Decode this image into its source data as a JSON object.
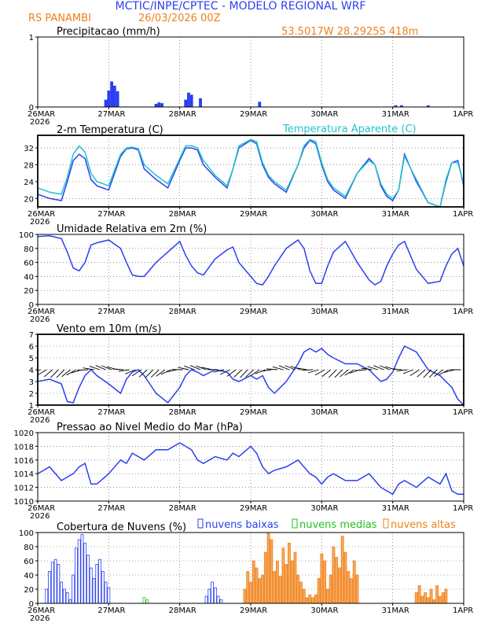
{
  "header": {
    "title": "MCTIC/INPE/CPTEC - MODELO REGIONAL WRF",
    "location": "RS PANAMBI",
    "run_date": "26/03/2026 00Z",
    "coords": "53.5017W 28.2925S 418m"
  },
  "colors": {
    "title": "#2d3ff2",
    "accent": "#f07f1a",
    "line_blue": "#2a3ff0",
    "line_cyan": "#22c3c9",
    "low_clouds": "#2a3ff0",
    "mid_clouds": "#22c022",
    "high_clouds": "#f07f1a",
    "high_fill": "#f6a85c"
  },
  "x_axis": {
    "days": [
      "26MAR",
      "27MAR",
      "28MAR",
      "29MAR",
      "30MAR",
      "31MAR",
      "1APR"
    ],
    "year": "2026"
  },
  "chart_data": [
    {
      "type": "bar",
      "title": "Precipitacao (mm/h)",
      "ylim": [
        0,
        1
      ],
      "yticks": [
        "0",
        "1"
      ],
      "series": [
        {
          "name": "Precipitacao",
          "hours": [
            23,
            24,
            25,
            26,
            27,
            40,
            41,
            42,
            50,
            51,
            52,
            55,
            75,
            121,
            123,
            132
          ],
          "values": [
            0.1,
            0.23,
            0.36,
            0.3,
            0.22,
            0.04,
            0.06,
            0.05,
            0.1,
            0.2,
            0.17,
            0.12,
            0.07,
            0.02,
            0.02,
            0.02
          ]
        }
      ]
    },
    {
      "type": "line",
      "title": "2-m Temperatura (C)",
      "legend_label": "Temperatura Aparente (C)",
      "ylim": [
        18,
        35
      ],
      "yticks": [
        "20",
        "24",
        "28",
        "32"
      ],
      "series": [
        {
          "name": "2-m Temperatura",
          "hours": [
            0,
            4,
            8,
            10,
            12,
            14,
            16,
            18,
            20,
            24,
            28,
            30,
            32,
            34,
            36,
            40,
            44,
            48,
            50,
            52,
            54,
            56,
            60,
            64,
            66,
            68,
            72,
            74,
            76,
            78,
            80,
            84,
            88,
            90,
            92,
            94,
            96,
            98,
            100,
            104,
            108,
            112,
            114,
            116,
            118,
            120,
            122,
            124,
            128,
            132,
            136,
            138,
            140,
            142,
            144
          ],
          "values": [
            21.0,
            20.0,
            19.5,
            24.0,
            29.0,
            30.5,
            29.5,
            24.5,
            23.0,
            22.0,
            30.0,
            31.8,
            32.0,
            31.5,
            27.0,
            24.5,
            22.5,
            29.0,
            32.0,
            32.0,
            31.5,
            28.0,
            25.0,
            22.5,
            27.0,
            32.0,
            33.8,
            33.0,
            28.0,
            25.0,
            23.5,
            21.5,
            28.0,
            32.0,
            33.8,
            33.0,
            28.0,
            24.0,
            22.0,
            20.0,
            26.0,
            29.5,
            28.0,
            23.0,
            20.5,
            19.5,
            22.0,
            30.5,
            24.0,
            19.0,
            18.0,
            24.0,
            28.5,
            29.0,
            23.0
          ]
        },
        {
          "name": "Temperatura Aparente",
          "hours": [
            0,
            4,
            8,
            10,
            12,
            14,
            16,
            18,
            20,
            24,
            28,
            30,
            32,
            34,
            36,
            40,
            44,
            48,
            50,
            52,
            54,
            56,
            60,
            64,
            66,
            68,
            72,
            74,
            76,
            78,
            80,
            84,
            88,
            90,
            92,
            94,
            96,
            98,
            100,
            104,
            108,
            112,
            114,
            116,
            118,
            120,
            122,
            124,
            128,
            132,
            136,
            138,
            140,
            142,
            144
          ],
          "values": [
            22.5,
            21.5,
            21.0,
            25.0,
            30.5,
            32.5,
            31.0,
            26.0,
            24.0,
            23.0,
            30.5,
            32.0,
            32.2,
            31.8,
            28.0,
            25.5,
            23.5,
            29.5,
            32.5,
            32.5,
            32.0,
            29.0,
            25.5,
            23.0,
            27.0,
            32.5,
            34.0,
            33.5,
            28.5,
            25.5,
            24.0,
            22.0,
            28.0,
            32.5,
            34.0,
            33.5,
            28.5,
            24.5,
            22.5,
            20.5,
            26.0,
            29.0,
            28.0,
            23.5,
            21.0,
            20.0,
            22.0,
            30.0,
            24.5,
            19.0,
            18.0,
            24.5,
            28.5,
            28.5,
            23.5
          ]
        }
      ]
    },
    {
      "type": "line",
      "title": "Umidade Relativa em 2m (%)",
      "ylim": [
        0,
        100
      ],
      "yticks": [
        "0",
        "20",
        "40",
        "60",
        "80",
        "100"
      ],
      "series": [
        {
          "name": "Umidade Relativa",
          "hours": [
            0,
            4,
            8,
            10,
            12,
            14,
            16,
            18,
            20,
            24,
            28,
            30,
            32,
            34,
            36,
            40,
            44,
            48,
            50,
            52,
            54,
            56,
            60,
            64,
            66,
            68,
            72,
            74,
            76,
            78,
            80,
            84,
            88,
            90,
            92,
            94,
            96,
            98,
            100,
            104,
            108,
            112,
            114,
            116,
            118,
            120,
            122,
            124,
            128,
            132,
            136,
            138,
            140,
            142,
            144
          ],
          "values": [
            97,
            98,
            94,
            75,
            52,
            48,
            60,
            85,
            88,
            92,
            80,
            60,
            42,
            40,
            40,
            60,
            75,
            90,
            70,
            55,
            45,
            42,
            65,
            78,
            82,
            60,
            40,
            30,
            28,
            40,
            55,
            80,
            92,
            80,
            48,
            30,
            30,
            55,
            75,
            90,
            60,
            35,
            28,
            33,
            55,
            72,
            85,
            90,
            50,
            30,
            33,
            55,
            72,
            80,
            55
          ]
        }
      ]
    },
    {
      "type": "line",
      "title": "Vento em 10m (m/s)",
      "ylim": [
        1,
        7
      ],
      "yticks": [
        "1",
        "2",
        "3",
        "4",
        "5",
        "6",
        "7"
      ],
      "series": [
        {
          "name": "Vento em 10m",
          "hours": [
            0,
            4,
            8,
            10,
            12,
            14,
            16,
            18,
            20,
            24,
            28,
            30,
            32,
            34,
            36,
            40,
            44,
            48,
            50,
            52,
            54,
            56,
            60,
            64,
            66,
            68,
            72,
            74,
            76,
            78,
            80,
            84,
            88,
            90,
            92,
            94,
            96,
            98,
            100,
            104,
            108,
            112,
            114,
            116,
            118,
            120,
            122,
            124,
            128,
            132,
            136,
            138,
            140,
            142,
            144
          ],
          "values": [
            3.0,
            3.2,
            2.8,
            1.3,
            1.2,
            2.5,
            3.5,
            4.0,
            3.5,
            2.8,
            2.0,
            3.2,
            3.8,
            4.0,
            3.5,
            2.0,
            1.2,
            2.5,
            3.5,
            4.0,
            3.8,
            3.5,
            4.0,
            3.8,
            3.2,
            3.0,
            3.5,
            3.2,
            3.5,
            2.5,
            2.0,
            3.0,
            4.5,
            5.5,
            5.8,
            5.5,
            5.8,
            5.3,
            5.0,
            4.5,
            4.5,
            4.0,
            3.5,
            3.0,
            3.2,
            3.8,
            5.0,
            6.0,
            5.5,
            4.0,
            3.5,
            3.0,
            2.5,
            1.5,
            1.0
          ]
        }
      ]
    },
    {
      "type": "line",
      "title": "Pressao ao Nivel Medio do Mar (hPa)",
      "ylim": [
        1010,
        1020
      ],
      "yticks": [
        "1010",
        "1012",
        "1014",
        "1016",
        "1018",
        "1020"
      ],
      "series": [
        {
          "name": "Pressao",
          "hours": [
            0,
            4,
            8,
            10,
            12,
            14,
            16,
            18,
            20,
            24,
            28,
            30,
            32,
            34,
            36,
            40,
            44,
            48,
            50,
            52,
            54,
            56,
            60,
            64,
            66,
            68,
            72,
            74,
            76,
            78,
            80,
            84,
            88,
            90,
            92,
            94,
            96,
            98,
            100,
            104,
            108,
            112,
            114,
            116,
            118,
            120,
            122,
            124,
            128,
            132,
            136,
            138,
            140,
            142,
            144
          ],
          "values": [
            1014.0,
            1015.0,
            1013.0,
            1013.5,
            1014.0,
            1015.0,
            1015.5,
            1012.5,
            1012.5,
            1014.0,
            1016.0,
            1015.5,
            1017.0,
            1016.5,
            1016.0,
            1017.5,
            1017.5,
            1018.5,
            1018.0,
            1017.5,
            1016.0,
            1015.5,
            1016.5,
            1016.0,
            1017.0,
            1016.5,
            1018.0,
            1017.0,
            1015.0,
            1014.0,
            1014.5,
            1015.0,
            1016.0,
            1015.0,
            1014.0,
            1013.5,
            1012.5,
            1013.5,
            1014.0,
            1013.0,
            1013.0,
            1014.0,
            1013.0,
            1012.0,
            1011.5,
            1011.0,
            1012.5,
            1013.0,
            1012.0,
            1013.5,
            1012.5,
            1014.0,
            1011.5,
            1011.0,
            1011.0
          ]
        }
      ]
    },
    {
      "type": "bar",
      "title": "Cobertura de Nuvens (%)",
      "ylim": [
        0,
        100
      ],
      "yticks": [
        "0",
        "20",
        "40",
        "60",
        "80",
        "100"
      ],
      "series": [
        {
          "name": "nuvens baixas",
          "hours": [
            3,
            4,
            5,
            6,
            7,
            8,
            9,
            10,
            11,
            12,
            13,
            14,
            15,
            16,
            17,
            18,
            19,
            20,
            21,
            22,
            23,
            24,
            57,
            58,
            59,
            60,
            61,
            62
          ],
          "values": [
            20,
            45,
            58,
            62,
            55,
            30,
            20,
            15,
            5,
            40,
            78,
            90,
            97,
            85,
            68,
            50,
            35,
            55,
            62,
            45,
            30,
            22,
            10,
            20,
            30,
            22,
            10,
            5
          ]
        },
        {
          "name": "nuvens medias",
          "hours": [
            36,
            37,
            76,
            77,
            92,
            93
          ],
          "values": [
            8,
            5,
            10,
            12,
            5,
            4
          ]
        },
        {
          "name": "nuvens altas",
          "hours": [
            70,
            71,
            72,
            73,
            74,
            75,
            76,
            77,
            78,
            79,
            80,
            81,
            82,
            83,
            84,
            85,
            86,
            87,
            88,
            89,
            90,
            91,
            92,
            93,
            94,
            95,
            96,
            97,
            98,
            99,
            100,
            101,
            102,
            103,
            104,
            105,
            106,
            107,
            108,
            128,
            129,
            130,
            131,
            132,
            133,
            134,
            135,
            136,
            137,
            138
          ],
          "values": [
            20,
            45,
            30,
            60,
            50,
            35,
            40,
            72,
            100,
            90,
            45,
            60,
            38,
            78,
            55,
            85,
            60,
            72,
            40,
            30,
            20,
            8,
            12,
            8,
            12,
            35,
            70,
            60,
            20,
            40,
            80,
            65,
            50,
            95,
            72,
            45,
            35,
            60,
            40,
            15,
            25,
            10,
            15,
            8,
            20,
            5,
            25,
            10,
            15,
            20
          ]
        }
      ]
    }
  ]
}
